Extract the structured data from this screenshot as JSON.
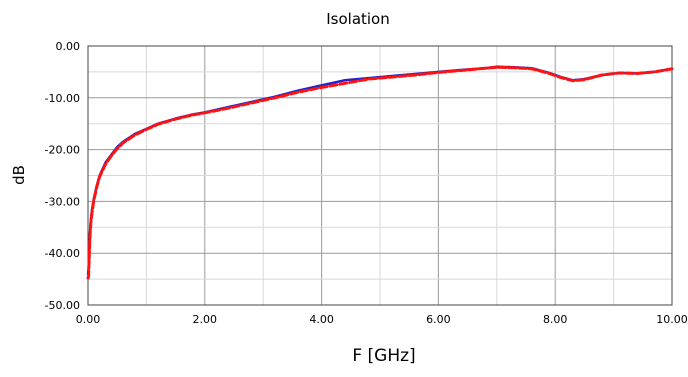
{
  "chart_data": {
    "type": "line",
    "title": "Isolation",
    "xlabel": "F [GHz]",
    "ylabel": "dB",
    "xlim": [
      0,
      10
    ],
    "ylim": [
      -50,
      0
    ],
    "x_ticks": [
      "0.00",
      "2.00",
      "4.00",
      "6.00",
      "8.00",
      "10.00"
    ],
    "y_ticks": [
      "0.00",
      "-10.00",
      "-20.00",
      "-30.00",
      "-40.00",
      "-50.00"
    ],
    "grid": true,
    "legend": "none",
    "series": [
      {
        "color": "#2222cc",
        "x": [
          0.0,
          0.01,
          0.02,
          0.03,
          0.04,
          0.05,
          0.07,
          0.1,
          0.15,
          0.2,
          0.3,
          0.4,
          0.5,
          0.6,
          0.8,
          1.0,
          1.2,
          1.5,
          1.8,
          2.0,
          2.4,
          2.8,
          3.2,
          3.6,
          4.0,
          4.4,
          4.8,
          5.2,
          5.6,
          6.0,
          6.4,
          6.8,
          7.0,
          7.3,
          7.6,
          7.9,
          8.1,
          8.3,
          8.5,
          8.8,
          9.1,
          9.4,
          9.7,
          10.0
        ],
        "y": [
          -44.0,
          -43.0,
          -40.0,
          -37.0,
          -35.0,
          -33.5,
          -31.5,
          -29.5,
          -27.0,
          -25.0,
          -22.5,
          -21.0,
          -19.5,
          -18.5,
          -17.0,
          -16.0,
          -15.0,
          -14.0,
          -13.2,
          -12.8,
          -11.8,
          -10.8,
          -9.8,
          -8.6,
          -7.6,
          -6.6,
          -6.2,
          -5.8,
          -5.4,
          -5.0,
          -4.6,
          -4.3,
          -4.0,
          -4.1,
          -4.3,
          -5.2,
          -6.0,
          -6.6,
          -6.4,
          -5.6,
          -5.2,
          -5.3,
          -5.0,
          -4.4
        ]
      },
      {
        "color": "#ff1111",
        "x": [
          0.0,
          0.01,
          0.02,
          0.03,
          0.04,
          0.05,
          0.07,
          0.1,
          0.15,
          0.2,
          0.3,
          0.4,
          0.5,
          0.6,
          0.8,
          1.0,
          1.2,
          1.5,
          1.8,
          2.0,
          2.4,
          2.8,
          3.2,
          3.6,
          4.0,
          4.4,
          4.8,
          5.2,
          5.6,
          6.0,
          6.4,
          6.8,
          7.0,
          7.3,
          7.6,
          7.9,
          8.1,
          8.3,
          8.5,
          8.8,
          9.1,
          9.4,
          9.7,
          10.0
        ],
        "y": [
          -44.8,
          -44.5,
          -41.0,
          -38.0,
          -35.5,
          -34.0,
          -32.0,
          -29.8,
          -27.2,
          -25.2,
          -22.8,
          -21.2,
          -19.8,
          -18.7,
          -17.2,
          -16.1,
          -15.1,
          -14.1,
          -13.3,
          -12.9,
          -12.0,
          -11.0,
          -10.0,
          -8.9,
          -8.0,
          -7.2,
          -6.4,
          -6.0,
          -5.6,
          -5.1,
          -4.7,
          -4.3,
          -4.1,
          -4.2,
          -4.4,
          -5.3,
          -6.1,
          -6.7,
          -6.5,
          -5.6,
          -5.2,
          -5.3,
          -5.0,
          -4.4
        ]
      }
    ]
  }
}
